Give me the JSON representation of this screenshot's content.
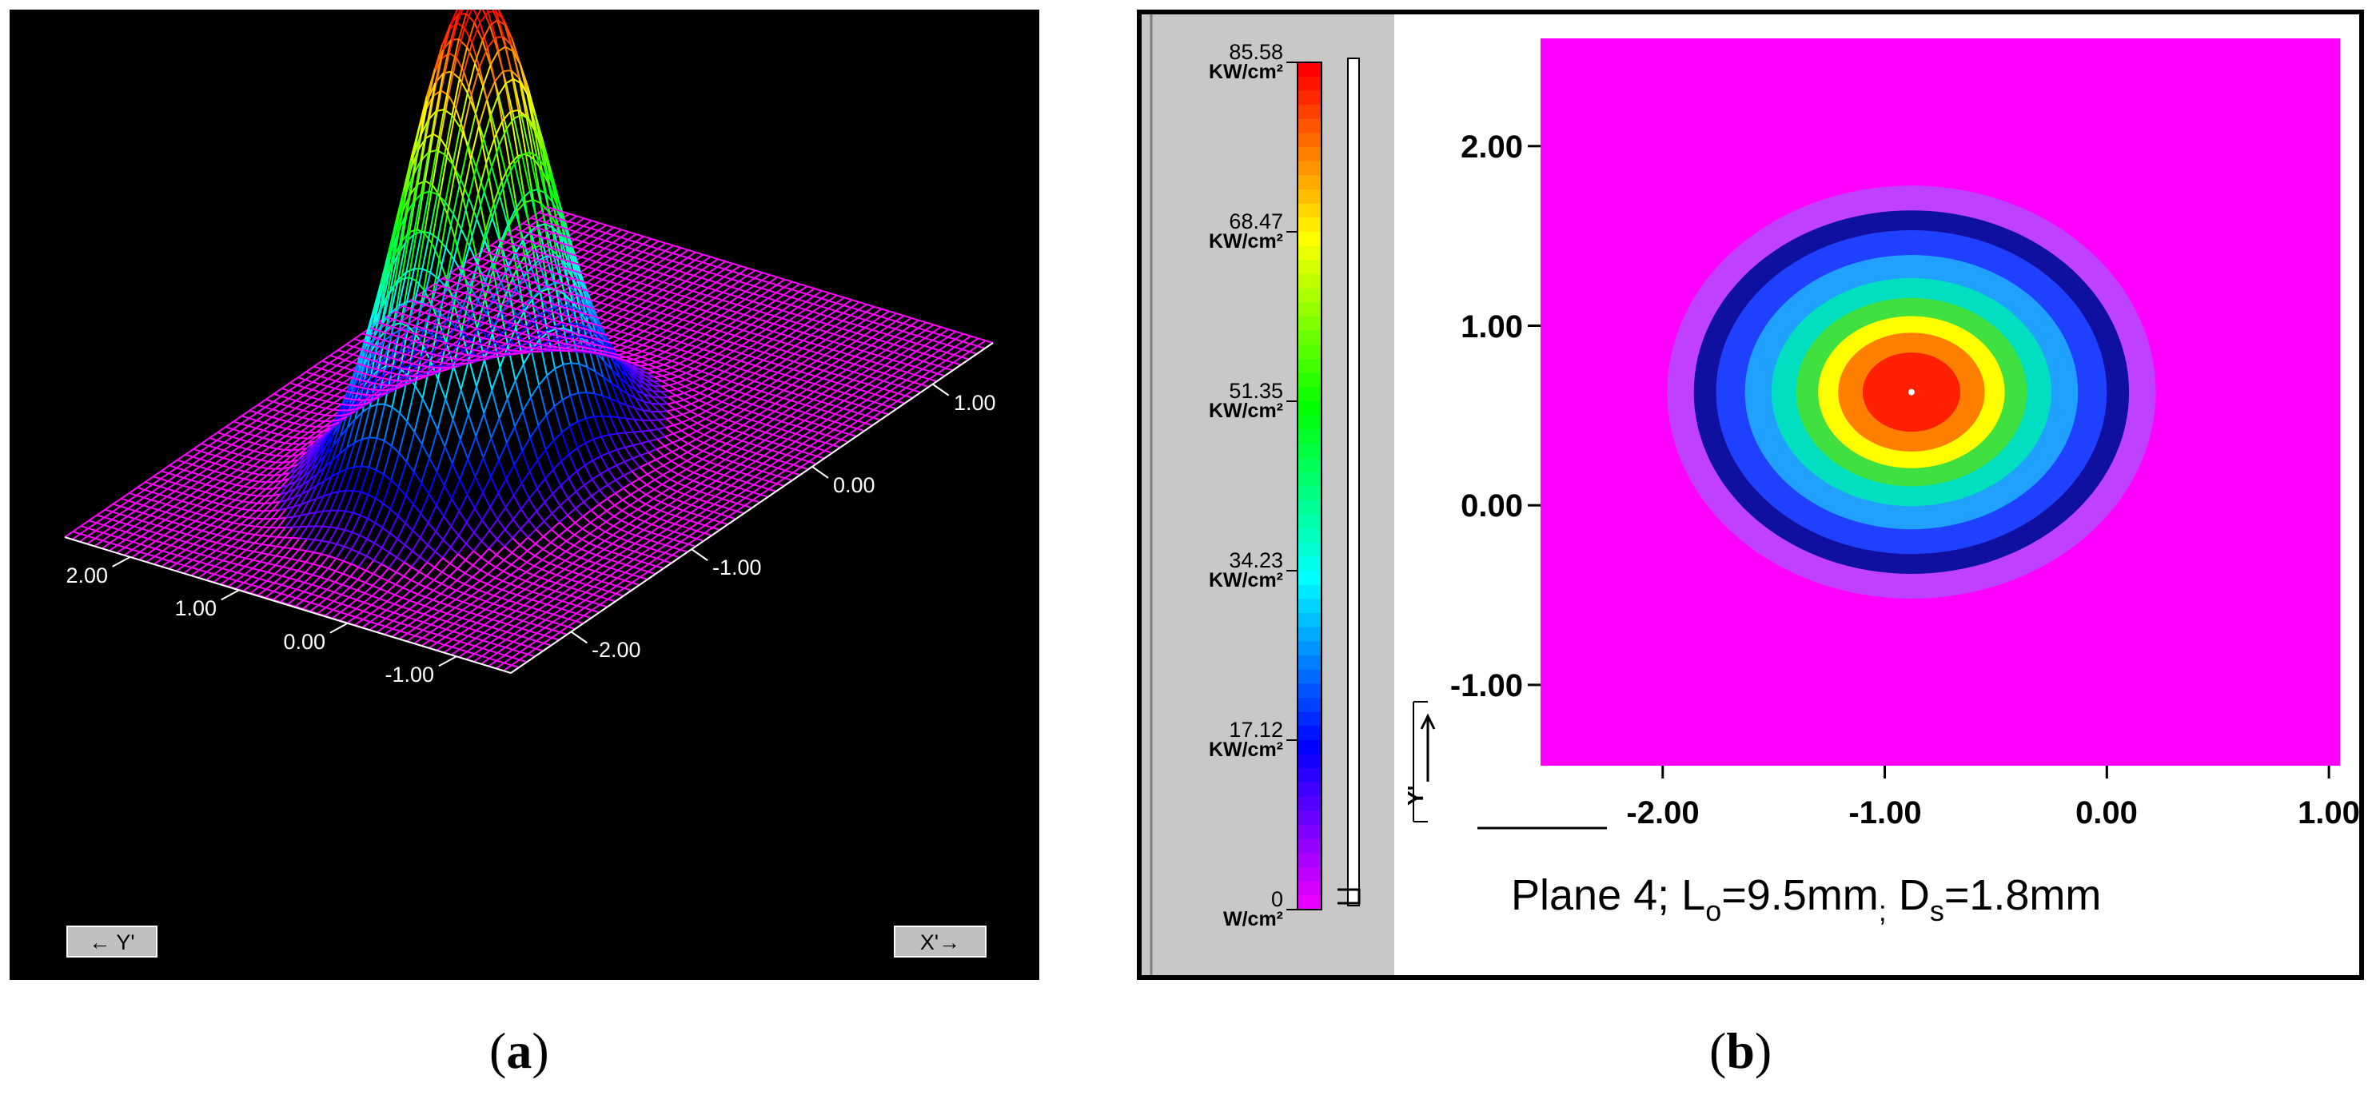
{
  "chart_data": [
    {
      "type": "surface-3d",
      "panel_label": "a",
      "x_axis": {
        "ticks": [
          "-2.00",
          "-1.00",
          "0.00",
          "1.00"
        ]
      },
      "y_axis": {
        "ticks": [
          "-1.00",
          "0.00",
          "1.00",
          "2.00"
        ]
      },
      "buttons": {
        "y": "← Y'",
        "x": "X'→"
      },
      "surface": {
        "shape": "gaussian",
        "peak_x": -0.9,
        "peak_y": 0.6,
        "sigma": 0.45,
        "x_range": [
          -2.5,
          1.5
        ],
        "y_range": [
          -1.5,
          2.6
        ]
      },
      "colors": {
        "background": "#000000",
        "base": "#ff00ff"
      }
    },
    {
      "type": "heatmap",
      "panel_label": "b",
      "colorbar": {
        "labels": [
          {
            "value": "85.58",
            "unit": "KW/cm²"
          },
          {
            "value": "68.47",
            "unit": "KW/cm²"
          },
          {
            "value": "51.35",
            "unit": "KW/cm²"
          },
          {
            "value": "34.23",
            "unit": "KW/cm²"
          },
          {
            "value": "17.12",
            "unit": "KW/cm²"
          },
          {
            "value": "0",
            "unit": "W/cm²"
          }
        ],
        "range": [
          0,
          85.58
        ]
      },
      "x_ticks": [
        "-2.00",
        "-1.00",
        "0.00",
        "1.00"
      ],
      "y_ticks": [
        "2.00",
        "1.00",
        "0.00",
        "-1.00"
      ],
      "xlim": [
        -2.55,
        1.05
      ],
      "ylim": [
        -1.45,
        2.6
      ],
      "peak": {
        "x": -0.88,
        "y": 0.63,
        "value": 85.58
      },
      "rings": [
        {
          "level": 5,
          "rx": 1.1,
          "ry": 1.25,
          "color": "#c040ff"
        },
        {
          "level": 15,
          "rx": 0.98,
          "ry": 1.1,
          "color": "#1010a0"
        },
        {
          "level": 25,
          "rx": 0.88,
          "ry": 0.98,
          "color": "#2040ff"
        },
        {
          "level": 35,
          "rx": 0.75,
          "ry": 0.83,
          "color": "#20a0ff"
        },
        {
          "level": 45,
          "rx": 0.63,
          "ry": 0.69,
          "color": "#00e0c0"
        },
        {
          "level": 55,
          "rx": 0.52,
          "ry": 0.57,
          "color": "#40e040"
        },
        {
          "level": 65,
          "rx": 0.42,
          "ry": 0.46,
          "color": "#ffff00"
        },
        {
          "level": 72,
          "rx": 0.33,
          "ry": 0.36,
          "color": "#ff8000"
        },
        {
          "level": 80,
          "rx": 0.22,
          "ry": 0.24,
          "color": "#ff2000"
        }
      ],
      "axis_label_y": "Y'",
      "caption": {
        "main": "Plane 4; L",
        "sub1": "o",
        "mid": "=9.5mm",
        "semi": ";",
        "d": " D",
        "sub2": "s",
        "end": "=1.8mm"
      },
      "colors": {
        "field": "#ff00ff",
        "sidebar": "#c8c8c8"
      }
    }
  ]
}
